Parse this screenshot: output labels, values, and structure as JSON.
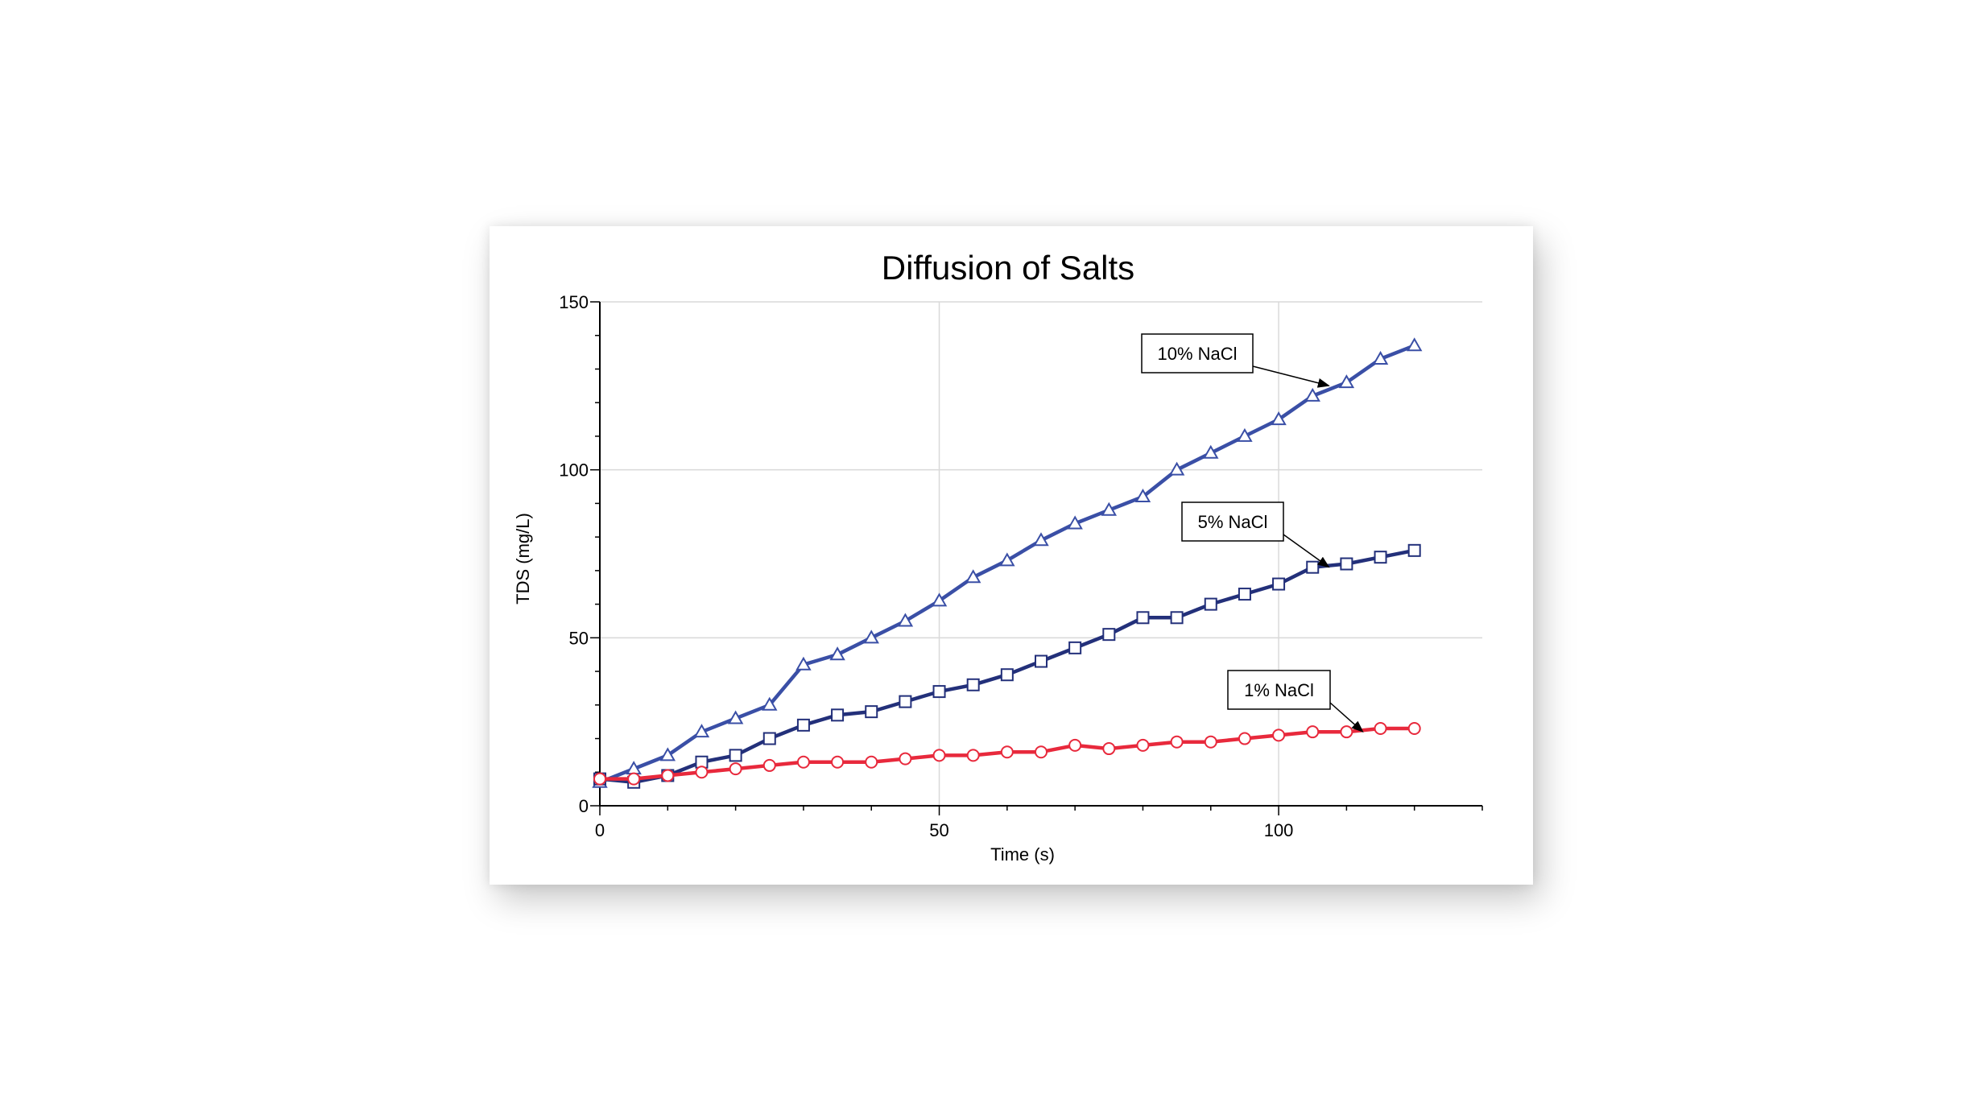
{
  "chart_data": {
    "type": "line",
    "title": "Diffusion of Salts",
    "xlabel": "Time (s)",
    "ylabel": "TDS (mg/L)",
    "xlim": [
      0,
      130
    ],
    "ylim": [
      0,
      150
    ],
    "x_ticks": [
      0,
      50,
      100
    ],
    "y_ticks": [
      0,
      50,
      100,
      150
    ],
    "grid": true,
    "legend": "none",
    "x": [
      0,
      5,
      10,
      15,
      20,
      25,
      30,
      35,
      40,
      45,
      50,
      55,
      60,
      65,
      70,
      75,
      80,
      85,
      90,
      95,
      100,
      105,
      110,
      115,
      120
    ],
    "series": [
      {
        "name": "10% NaCl",
        "color": "#3a4fa6",
        "marker": "triangle",
        "values": [
          7,
          11,
          15,
          22,
          26,
          30,
          42,
          45,
          50,
          55,
          61,
          68,
          73,
          79,
          84,
          88,
          92,
          100,
          105,
          110,
          115,
          122,
          126,
          133,
          137
        ]
      },
      {
        "name": "5% NaCl",
        "color": "#23307a",
        "marker": "square",
        "values": [
          8,
          7,
          9,
          13,
          15,
          20,
          24,
          27,
          28,
          31,
          34,
          36,
          39,
          43,
          47,
          51,
          56,
          56,
          60,
          63,
          66,
          71,
          72,
          74,
          76
        ]
      },
      {
        "name": "1% NaCl",
        "color": "#e8293c",
        "marker": "circle",
        "values": [
          8,
          8,
          9,
          10,
          11,
          12,
          13,
          13,
          13,
          14,
          15,
          15,
          16,
          16,
          18,
          17,
          18,
          19,
          19,
          20,
          21,
          22,
          22,
          23,
          23
        ]
      }
    ],
    "annotations": [
      {
        "text": "10% NaCl",
        "series": "10% NaCl",
        "target_x": 110,
        "target_y": 126
      },
      {
        "text": "5% NaCl",
        "series": "5% NaCl",
        "target_x": 110,
        "target_y": 72
      },
      {
        "text": "1% NaCl",
        "series": "1% NaCl",
        "target_x": 115,
        "target_y": 23
      }
    ]
  }
}
